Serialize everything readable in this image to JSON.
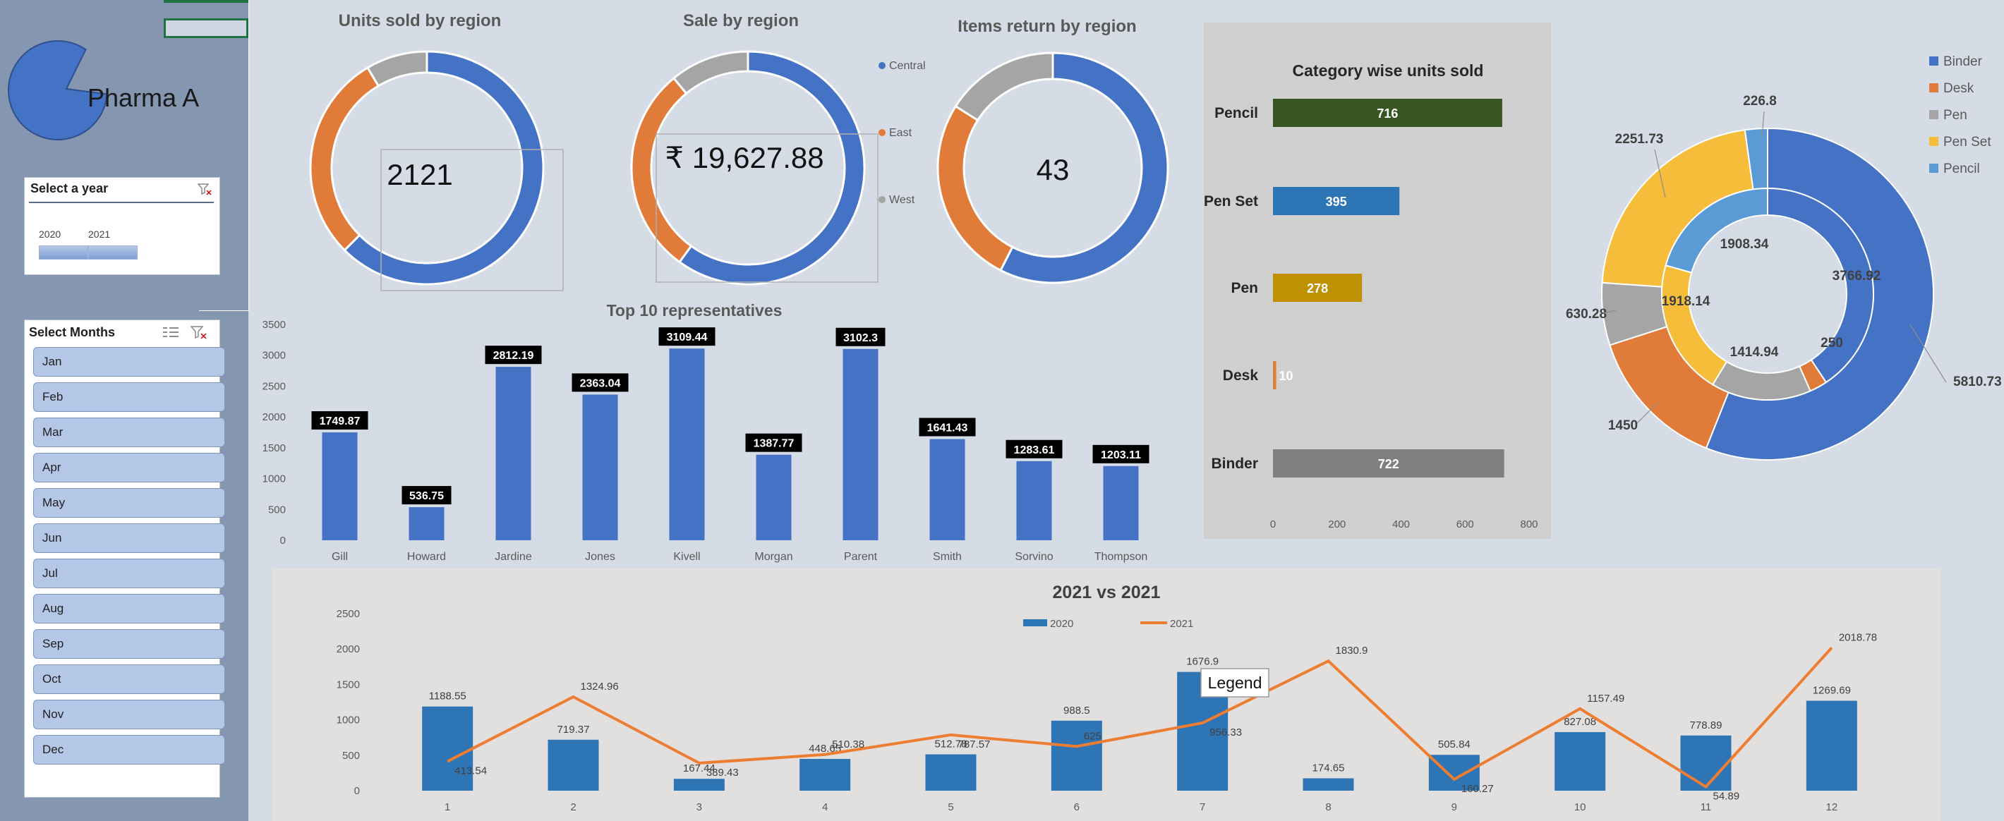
{
  "brand": {
    "name": "Pharma A",
    "logo_color": "#4472c4"
  },
  "year_slicer": {
    "title": "Select a year",
    "items": [
      "2020",
      "2021"
    ]
  },
  "months_slicer": {
    "title": "Select Months",
    "items": [
      "Jan",
      "Feb",
      "Mar",
      "Apr",
      "May",
      "Jun",
      "Jul",
      "Aug",
      "Sep",
      "Oct",
      "Nov",
      "Dec"
    ]
  },
  "region_legend": [
    "Central",
    "East",
    "West"
  ],
  "colors": {
    "blue": "#4472c4",
    "orange": "#e07b39",
    "gray": "#a5a5a5",
    "yellow": "#f6bd3a",
    "lightblue": "#5b9bd5",
    "green": "#375623",
    "gold": "#bf9000",
    "dark_blue": "#2e75b6",
    "line_orange": "#ed7d31"
  },
  "kpi": {
    "units": "2121",
    "sales": "₹ 19,627.88",
    "returns": "43"
  },
  "chart_data": [
    {
      "type": "pie",
      "title": "Units sold by region",
      "categories": [
        "Central",
        "East",
        "West"
      ],
      "values": [
        0.625,
        0.29,
        0.085
      ]
    },
    {
      "type": "pie",
      "title": "Sale by region",
      "categories": [
        "Central",
        "East",
        "West"
      ],
      "values": [
        0.6,
        0.29,
        0.11
      ]
    },
    {
      "type": "pie",
      "title": "Items return by region",
      "categories": [
        "Central",
        "East",
        "West"
      ],
      "values": [
        0.575,
        0.265,
        0.16
      ]
    },
    {
      "type": "bar",
      "title": "Top 10 representatives",
      "categories": [
        "Gill",
        "Howard",
        "Jardine",
        "Jones",
        "Kivell",
        "Morgan",
        "Parent",
        "Smith",
        "Sorvino",
        "Thompson"
      ],
      "values": [
        1749.87,
        536.75,
        2812.19,
        2363.04,
        3109.44,
        1387.77,
        3102.3,
        1641.43,
        1283.61,
        1203.11
      ],
      "yticks": [
        0,
        500,
        1000,
        1500,
        2000,
        2500,
        3000,
        3500
      ],
      "ylim": [
        0,
        3500
      ]
    },
    {
      "type": "bar",
      "orientation": "horizontal",
      "title": "Category wise units sold",
      "categories": [
        "Pencil",
        "Pen Set",
        "Pen",
        "Desk",
        "Binder"
      ],
      "values": [
        716,
        395,
        278,
        10,
        722
      ],
      "xticks": [
        0,
        200,
        400,
        600,
        800
      ],
      "xlim": [
        0,
        800
      ]
    },
    {
      "type": "pie",
      "subtype": "double-donut",
      "legend": [
        "Binder",
        "Desk",
        "Pen",
        "Pen Set",
        "Pencil"
      ],
      "outer": [
        5810.73,
        1450,
        630.28,
        2251.73,
        226.8
      ],
      "inner": [
        3766.92,
        250,
        1414.94,
        1918.14,
        1908.34
      ]
    },
    {
      "type": "bar",
      "title": "2021 vs 2021",
      "categories": [
        "1",
        "2",
        "3",
        "4",
        "5",
        "6",
        "7",
        "8",
        "9",
        "10",
        "11",
        "12"
      ],
      "series": [
        {
          "name": "2020",
          "type": "bar",
          "values": [
            1188.55,
            719.37,
            167.44,
            448.65,
            512.78,
            988.5,
            1676.9,
            174.65,
            505.84,
            827.08,
            778.89,
            1269.69
          ]
        },
        {
          "name": "2021",
          "type": "line",
          "values": [
            413.54,
            1324.96,
            389.43,
            510.38,
            787.57,
            625,
            956.33,
            1830.9,
            160.27,
            1157.49,
            54.89,
            2018.78
          ]
        }
      ],
      "yticks": [
        0,
        500,
        1000,
        1500,
        2000,
        2500
      ],
      "ylim": [
        0,
        2500
      ]
    }
  ],
  "tooltip": {
    "text": "Legend"
  }
}
